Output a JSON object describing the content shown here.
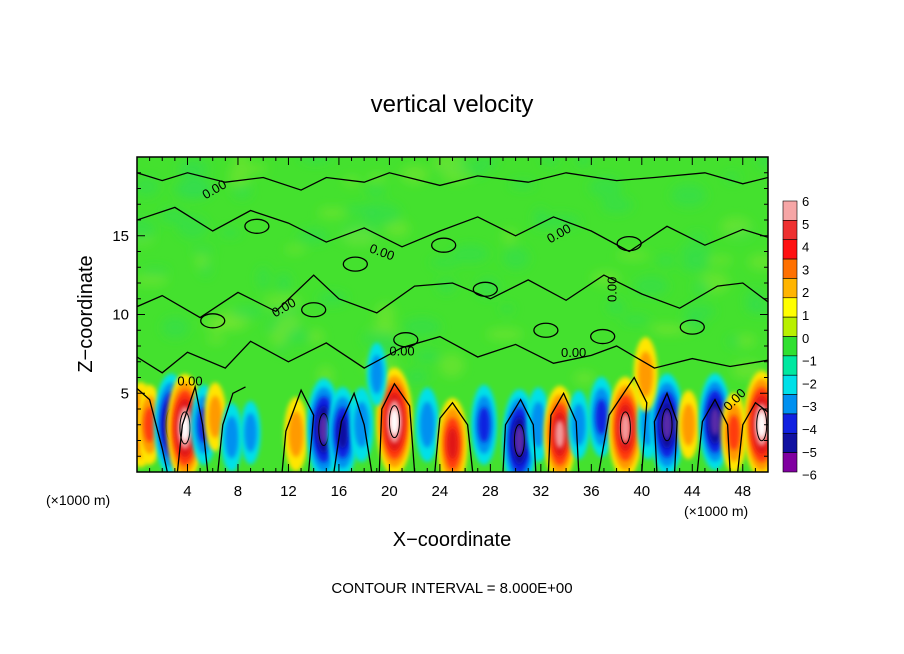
{
  "chart_data": {
    "type": "heatmap",
    "title": "vertical velocity",
    "xlabel": "X−coordinate",
    "ylabel": "Z−coordinate",
    "x_unit": "(×1000 m)",
    "footer": "CONTOUR INTERVAL = 8.000E+00",
    "xlim": [
      0,
      50
    ],
    "ylim": [
      0,
      20
    ],
    "x_ticks": [
      "4",
      "8",
      "12",
      "16",
      "20",
      "24",
      "28",
      "32",
      "36",
      "40",
      "44",
      "48"
    ],
    "y_ticks": [
      "5",
      "10",
      "15"
    ],
    "contour_label": "0.00",
    "colorbar": {
      "labels": [
        "6",
        "5",
        "4",
        "3",
        "2",
        "1",
        "0",
        "−1",
        "−2",
        "−3",
        "−4",
        "−5",
        "−6"
      ],
      "colors": [
        "#f6a6a6",
        "#ee3030",
        "#ff1010",
        "#ff7000",
        "#ffb400",
        "#ffff00",
        "#b8f000",
        "#30e030",
        "#00e8a0",
        "#00e0e8",
        "#0090f0",
        "#1020e0",
        "#1010a0",
        "#8000a0"
      ]
    },
    "cells": [
      {
        "x": 0.3,
        "z": 3.0,
        "w": 0.6
      },
      {
        "x": 1.0,
        "z": 3.0,
        "w": 0.5
      },
      {
        "x": 2.7,
        "z": 3.0,
        "w": -0.9
      },
      {
        "x": 3.8,
        "z": 2.8,
        "w": 1.0
      },
      {
        "x": 5.3,
        "z": 3.0,
        "w": -0.5
      },
      {
        "x": 6.2,
        "z": 3.5,
        "w": 0.3
      },
      {
        "x": 7.5,
        "z": 2.2,
        "w": -0.3
      },
      {
        "x": 9.0,
        "z": 2.5,
        "w": -0.2
      },
      {
        "x": 12.6,
        "z": 2.4,
        "w": 0.4
      },
      {
        "x": 14.8,
        "z": 2.7,
        "w": -0.9
      },
      {
        "x": 16.3,
        "z": 2.5,
        "w": -0.7
      },
      {
        "x": 17.8,
        "z": 3.0,
        "w": -0.4
      },
      {
        "x": 20.4,
        "z": 3.2,
        "w": 1.0
      },
      {
        "x": 23.0,
        "z": 3.0,
        "w": -0.4
      },
      {
        "x": 25.0,
        "z": 1.8,
        "w": 0.7
      },
      {
        "x": 27.5,
        "z": 3.0,
        "w": -0.5
      },
      {
        "x": 30.3,
        "z": 2.0,
        "w": -0.9
      },
      {
        "x": 31.8,
        "z": 3.0,
        "w": -0.4
      },
      {
        "x": 33.5,
        "z": 2.4,
        "w": 0.8
      },
      {
        "x": 35.0,
        "z": 3.0,
        "w": -0.3
      },
      {
        "x": 36.8,
        "z": 3.5,
        "w": -0.5
      },
      {
        "x": 38.7,
        "z": 2.8,
        "w": 0.9
      },
      {
        "x": 40.5,
        "z": 3.0,
        "w": -0.3
      },
      {
        "x": 42.0,
        "z": 3.0,
        "w": -0.9
      },
      {
        "x": 43.7,
        "z": 3.0,
        "w": 0.3
      },
      {
        "x": 45.8,
        "z": 3.2,
        "w": -0.8
      },
      {
        "x": 47.3,
        "z": 2.5,
        "w": 0.5
      },
      {
        "x": 49.5,
        "z": 3.0,
        "w": 1.0
      },
      {
        "x": 40.3,
        "z": 6.2,
        "w": 0.4
      },
      {
        "x": 19.0,
        "z": 6.2,
        "w": -0.2
      }
    ]
  }
}
